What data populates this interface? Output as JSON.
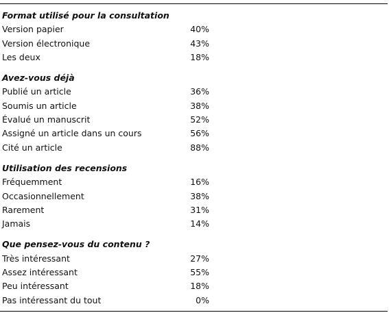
{
  "sections": [
    {
      "heading": "Format utilisé pour la consultation",
      "rows": [
        [
          "Version papier",
          "40%"
        ],
        [
          "Version électronique",
          "43%"
        ],
        [
          "Les deux",
          "18%"
        ]
      ]
    },
    {
      "heading": "Avez-vous déjà",
      "rows": [
        [
          "Publié un article",
          "36%"
        ],
        [
          "Soumis un article",
          "38%"
        ],
        [
          "Évalué un manuscrit",
          "52%"
        ],
        [
          "Assigné un article dans un cours",
          "56%"
        ],
        [
          "Cité un article",
          "88%"
        ]
      ]
    },
    {
      "heading": "Utilisation des recensions",
      "rows": [
        [
          "Fréquemment",
          "16%"
        ],
        [
          "Occasionnellement",
          "38%"
        ],
        [
          "Rarement",
          "31%"
        ],
        [
          "Jamais",
          "14%"
        ]
      ]
    },
    {
      "heading": "Que pensez-vous du contenu ?",
      "rows": [
        [
          "Très intéressant",
          "27%"
        ],
        [
          "Assez intéressant",
          "55%"
        ],
        [
          "Peu intéressant",
          "18%"
        ],
        [
          "Pas intéressant du tout",
          "0%"
        ]
      ]
    }
  ]
}
